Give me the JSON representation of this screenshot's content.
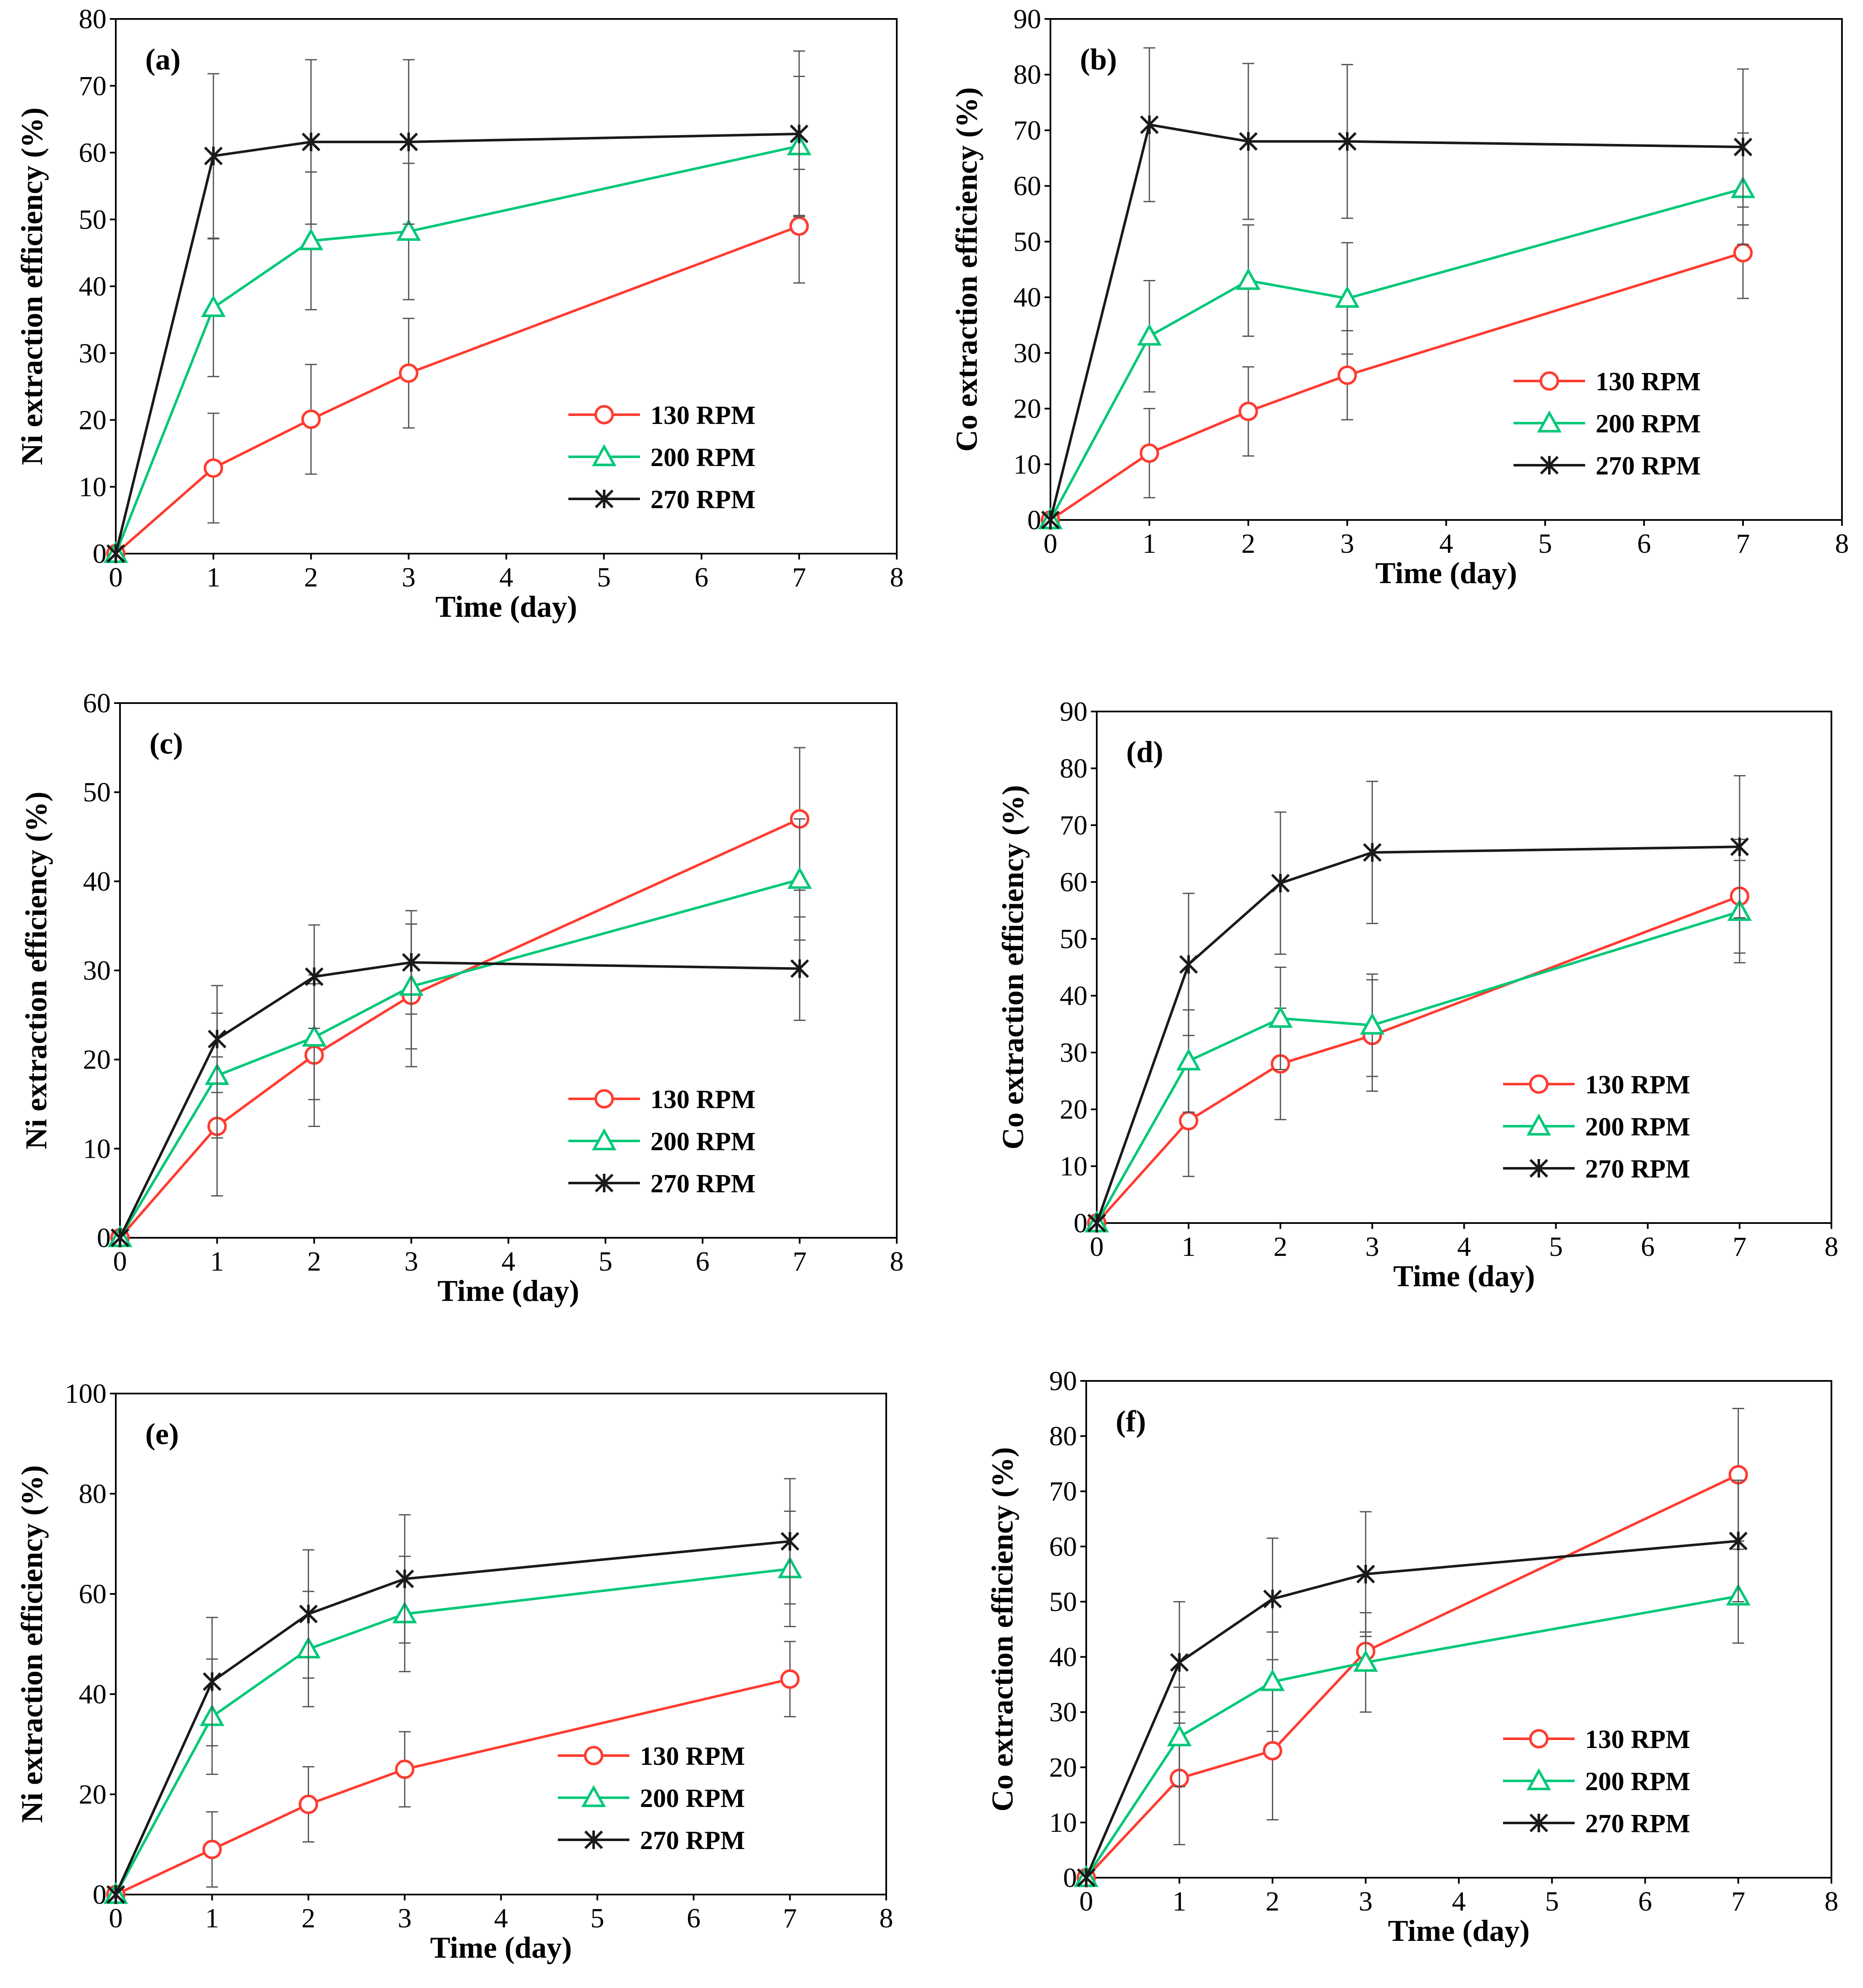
{
  "chart_data": [
    {
      "type": "line",
      "panel": "(a)",
      "xlabel": "Time (day)",
      "ylabel": "Ni extraction efficiency (%)",
      "xlim": [
        0,
        8
      ],
      "ylim": [
        0,
        80
      ],
      "xticks": [
        "0",
        "1",
        "2",
        "3",
        "4",
        "5",
        "6",
        "7",
        "8"
      ],
      "yticks": [
        "0",
        "10",
        "20",
        "30",
        "40",
        "50",
        "60",
        "70",
        "80"
      ],
      "legend_position": "bottom-right",
      "x": [
        0,
        1,
        2,
        3,
        7
      ],
      "series": [
        {
          "name": "130 RPM",
          "marker": "circle",
          "color": "#ff3b30",
          "values": [
            0,
            12.8,
            20.1,
            27.0,
            49.0
          ],
          "errors": [
            0,
            8.2,
            8.2,
            8.2,
            8.5
          ]
        },
        {
          "name": "200 RPM",
          "marker": "triangle",
          "color": "#00c878",
          "values": [
            0,
            36.8,
            46.8,
            48.2,
            61.0
          ],
          "errors": [
            0,
            10.3,
            10.3,
            10.2,
            10.4
          ]
        },
        {
          "name": "270 RPM",
          "marker": "star",
          "color": "#1a1a1a",
          "values": [
            0,
            59.5,
            61.6,
            61.6,
            62.8
          ],
          "errors": [
            0,
            12.3,
            12.3,
            12.3,
            12.4
          ]
        }
      ]
    },
    {
      "type": "line",
      "panel": "(b)",
      "xlabel": "Time (day)",
      "ylabel": "Co extraction efficiency (%)",
      "xlim": [
        0,
        8
      ],
      "ylim": [
        0,
        90
      ],
      "xticks": [
        "0",
        "1",
        "2",
        "3",
        "4",
        "5",
        "6",
        "7",
        "8"
      ],
      "yticks": [
        "0",
        "10",
        "20",
        "30",
        "40",
        "50",
        "60",
        "70",
        "80",
        "90"
      ],
      "legend_position": "bottom-right",
      "x": [
        0,
        1,
        2,
        3,
        7
      ],
      "series": [
        {
          "name": "130 RPM",
          "marker": "circle",
          "color": "#ff3b30",
          "values": [
            0,
            12.0,
            19.5,
            26.0,
            48.0
          ],
          "errors": [
            0,
            8.0,
            8.0,
            8.0,
            8.2
          ]
        },
        {
          "name": "200 RPM",
          "marker": "triangle",
          "color": "#00c878",
          "values": [
            0,
            33.0,
            43.0,
            39.8,
            59.5
          ],
          "errors": [
            0,
            10.0,
            10.0,
            10.0,
            10.0
          ]
        },
        {
          "name": "270 RPM",
          "marker": "star",
          "color": "#1a1a1a",
          "values": [
            0,
            71.0,
            68.0,
            68.0,
            67.0
          ],
          "errors": [
            0,
            13.8,
            14.0,
            13.8,
            14.0
          ]
        }
      ]
    },
    {
      "type": "line",
      "panel": "(c)",
      "xlabel": "Time (day)",
      "ylabel": "Ni extraction efficiency (%)",
      "xlim": [
        0,
        8
      ],
      "ylim": [
        0,
        60
      ],
      "xticks": [
        "0",
        "1",
        "2",
        "3",
        "4",
        "5",
        "6",
        "7",
        "8"
      ],
      "yticks": [
        "0",
        "10",
        "20",
        "30",
        "40",
        "50",
        "60"
      ],
      "legend_position": "bottom-right",
      "x": [
        0,
        1,
        2,
        3,
        7
      ],
      "series": [
        {
          "name": "130 RPM",
          "marker": "circle",
          "color": "#ff3b30",
          "values": [
            0,
            12.5,
            20.5,
            27.2,
            47.0
          ],
          "errors": [
            0,
            7.8,
            8.0,
            8.0,
            8.0
          ]
        },
        {
          "name": "200 RPM",
          "marker": "triangle",
          "color": "#00c878",
          "values": [
            0,
            18.2,
            22.5,
            28.2,
            40.2
          ],
          "errors": [
            0,
            7.0,
            7.0,
            7.0,
            6.8
          ]
        },
        {
          "name": "270 RPM",
          "marker": "star",
          "color": "#1a1a1a",
          "values": [
            0,
            22.3,
            29.3,
            30.9,
            30.2
          ],
          "errors": [
            0,
            6.0,
            5.8,
            5.8,
            5.8
          ]
        }
      ]
    },
    {
      "type": "line",
      "panel": "(d)",
      "xlabel": "Time (day)",
      "ylabel": "Co extraction efficiency (%)",
      "xlim": [
        0,
        8
      ],
      "ylim": [
        0,
        90
      ],
      "xticks": [
        "0",
        "1",
        "2",
        "3",
        "4",
        "5",
        "6",
        "7",
        "8"
      ],
      "yticks": [
        "0",
        "10",
        "20",
        "30",
        "40",
        "50",
        "60",
        "70",
        "80",
        "90"
      ],
      "legend_position": "bottom-right",
      "x": [
        0,
        1,
        2,
        3,
        7
      ],
      "series": [
        {
          "name": "130 RPM",
          "marker": "circle",
          "color": "#ff3b30",
          "values": [
            0,
            18.0,
            28.0,
            33.0,
            57.5
          ],
          "errors": [
            0,
            9.8,
            9.8,
            9.8,
            10.0
          ]
        },
        {
          "name": "200 RPM",
          "marker": "triangle",
          "color": "#00c878",
          "values": [
            0,
            28.5,
            36.0,
            34.8,
            54.8
          ],
          "errors": [
            0,
            9.0,
            9.0,
            9.0,
            9.0
          ]
        },
        {
          "name": "270 RPM",
          "marker": "star",
          "color": "#1a1a1a",
          "values": [
            0,
            45.5,
            59.8,
            65.2,
            66.2
          ],
          "errors": [
            0,
            12.5,
            12.5,
            12.5,
            12.5
          ]
        }
      ]
    },
    {
      "type": "line",
      "panel": "(e)",
      "xlabel": "Time (day)",
      "ylabel": "Ni extraction efficiency (%)",
      "xlim": [
        0,
        8
      ],
      "ylim": [
        0,
        100
      ],
      "xticks": [
        "0",
        "1",
        "2",
        "3",
        "4",
        "5",
        "6",
        "7",
        "8"
      ],
      "yticks": [
        "0",
        "20",
        "40",
        "60",
        "80",
        "100"
      ],
      "legend_position": "bottom-right",
      "x": [
        0,
        1,
        2,
        3,
        7
      ],
      "series": [
        {
          "name": "130 RPM",
          "marker": "circle",
          "color": "#ff3b30",
          "values": [
            0,
            9.0,
            18.0,
            25.0,
            43.0
          ],
          "errors": [
            0,
            7.5,
            7.5,
            7.5,
            7.5
          ]
        },
        {
          "name": "200 RPM",
          "marker": "triangle",
          "color": "#00c878",
          "values": [
            0,
            35.5,
            49.0,
            56.0,
            65.0
          ],
          "errors": [
            0,
            11.5,
            11.5,
            11.5,
            11.5
          ]
        },
        {
          "name": "270 RPM",
          "marker": "star",
          "color": "#1a1a1a",
          "values": [
            0,
            42.5,
            56.0,
            63.0,
            70.5
          ],
          "errors": [
            0,
            12.8,
            12.8,
            12.8,
            12.5
          ]
        }
      ]
    },
    {
      "type": "line",
      "panel": "(f)",
      "xlabel": "Time (day)",
      "ylabel": "Co extraction efficiency (%)",
      "xlim": [
        0,
        8
      ],
      "ylim": [
        0,
        90
      ],
      "xticks": [
        "0",
        "1",
        "2",
        "3",
        "4",
        "5",
        "6",
        "7",
        "8"
      ],
      "yticks": [
        "0",
        "10",
        "20",
        "30",
        "40",
        "50",
        "60",
        "70",
        "80",
        "90"
      ],
      "legend_position": "bottom-right",
      "x": [
        0,
        1,
        2,
        3,
        7
      ],
      "series": [
        {
          "name": "130 RPM",
          "marker": "circle",
          "color": "#ff3b30",
          "values": [
            0,
            18.0,
            23.0,
            41.0,
            73.0
          ],
          "errors": [
            0,
            12.0,
            12.5,
            3.5,
            12.0
          ]
        },
        {
          "name": "200 RPM",
          "marker": "triangle",
          "color": "#00c878",
          "values": [
            0,
            25.5,
            35.5,
            39.0,
            51.0
          ],
          "errors": [
            0,
            9.0,
            9.0,
            9.0,
            8.5
          ]
        },
        {
          "name": "270 RPM",
          "marker": "star",
          "color": "#1a1a1a",
          "values": [
            0,
            39.0,
            50.5,
            55.0,
            61.0
          ],
          "errors": [
            0,
            11.0,
            11.0,
            11.3,
            11.0
          ]
        }
      ]
    }
  ]
}
